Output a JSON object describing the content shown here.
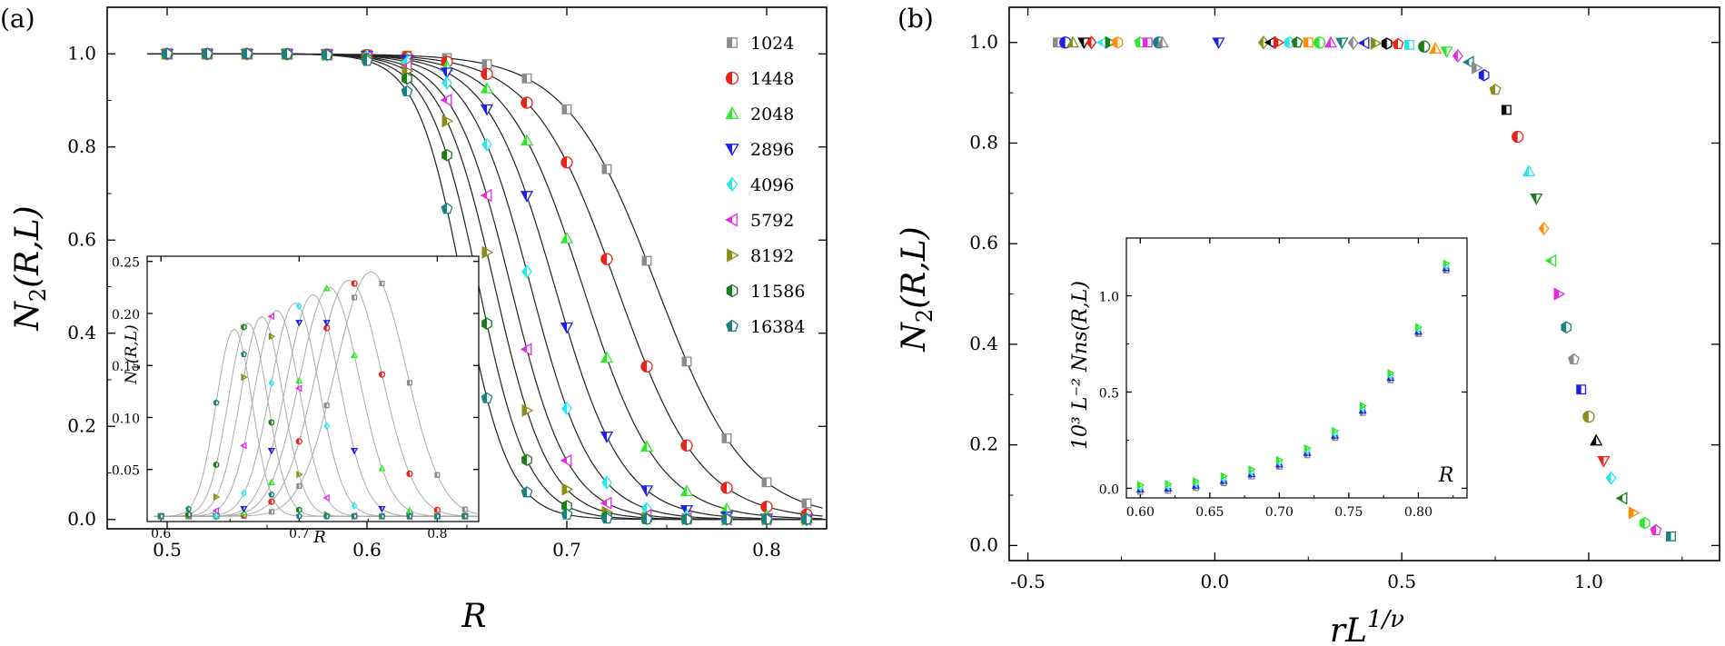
{
  "chart_data": [
    {
      "panel": "(a)",
      "type": "scatter",
      "title": "",
      "xlabel": "R",
      "ylabel": "N2(R,L)",
      "xlim": [
        0.47,
        0.83
      ],
      "ylim": [
        -0.02,
        1.1
      ],
      "xticks": [
        "0.5",
        "0.6",
        "0.7",
        "0.8"
      ],
      "yticks": [
        "0.0",
        "0.2",
        "0.4",
        "0.6",
        "0.8",
        "1.0"
      ],
      "grid": false,
      "legend": "right",
      "series": [
        {
          "name": "1024",
          "color": "#8a8a8a",
          "marker": "square-half",
          "r0": 0.745,
          "w": 0.0225
        },
        {
          "name": "1448",
          "color": "#e8231c",
          "marker": "circle-half",
          "r0": 0.725,
          "w": 0.021
        },
        {
          "name": "2048",
          "color": "#2ee62a",
          "marker": "triangle-up-half",
          "r0": 0.708,
          "w": 0.019
        },
        {
          "name": "2896",
          "color": "#1f1fe6",
          "marker": "triangle-down-half",
          "r0": 0.694,
          "w": 0.017
        },
        {
          "name": "4096",
          "color": "#28e5ee",
          "marker": "diamond-half",
          "r0": 0.682,
          "w": 0.0155
        },
        {
          "name": "5792",
          "color": "#e52ae5",
          "marker": "triangle-left-half",
          "r0": 0.672,
          "w": 0.0145
        },
        {
          "name": "8192",
          "color": "#8c8c1a",
          "marker": "triangle-right-half",
          "r0": 0.664,
          "w": 0.0135
        },
        {
          "name": "11586",
          "color": "#1d7d1d",
          "marker": "hexagon-half",
          "r0": 0.656,
          "w": 0.0125
        },
        {
          "name": "16384",
          "color": "#1a8080",
          "marker": "pentagon-half",
          "r0": 0.648,
          "w": 0.0115
        }
      ],
      "inset": {
        "xlabel": "R",
        "ylabel": "N1(R,L)",
        "xlim": [
          0.59,
          0.83
        ],
        "ylim": [
          0,
          0.255
        ],
        "xticks": [
          "0.6",
          "0.7",
          "0.8"
        ],
        "yticks": [
          "0.05",
          "0.10",
          "0.15",
          "0.20",
          "0.25"
        ],
        "peaks": [
          {
            "name": "1024",
            "peak_R": 0.752,
            "peak_value": 0.24
          },
          {
            "name": "1448",
            "peak_R": 0.736,
            "peak_value": 0.232
          },
          {
            "name": "2048",
            "peak_R": 0.722,
            "peak_value": 0.225
          },
          {
            "name": "2896",
            "peak_R": 0.71,
            "peak_value": 0.218
          },
          {
            "name": "4096",
            "peak_R": 0.697,
            "peak_value": 0.21
          },
          {
            "name": "5792",
            "peak_R": 0.684,
            "peak_value": 0.203
          },
          {
            "name": "8192",
            "peak_R": 0.673,
            "peak_value": 0.197
          },
          {
            "name": "11586",
            "peak_R": 0.663,
            "peak_value": 0.191
          },
          {
            "name": "16384",
            "peak_R": 0.653,
            "peak_value": 0.185
          }
        ]
      }
    },
    {
      "panel": "(b)",
      "type": "scatter",
      "title": "",
      "xlabel": "rL^(1/ν)",
      "ylabel": "N2(R,L)",
      "xlim": [
        -0.55,
        1.35
      ],
      "ylim": [
        -0.03,
        1.07
      ],
      "xticks": [
        "-0.5",
        "0.0",
        "0.5",
        "1.0"
      ],
      "yticks": [
        "0.0",
        "0.2",
        "0.4",
        "0.6",
        "0.8",
        "1.0"
      ],
      "grid": false,
      "collapse_center": 0.92,
      "collapse_width": 0.075,
      "inset": {
        "xlabel": "R",
        "ylabel": "10^3 L^-2 Nns(R,L)",
        "xlim": [
          0.59,
          0.835
        ],
        "ylim": [
          -0.05,
          1.3
        ],
        "xticks": [
          "0.60",
          "0.65",
          "0.70",
          "0.75",
          "0.80"
        ],
        "yticks": [
          "0.0",
          "0.5",
          "1.0"
        ],
        "x": [
          0.6,
          0.62,
          0.64,
          0.66,
          0.68,
          0.7,
          0.72,
          0.74,
          0.76,
          0.78,
          0.8,
          0.82
        ],
        "values": [
          0.0,
          0.005,
          0.02,
          0.045,
          0.08,
          0.13,
          0.19,
          0.28,
          0.41,
          0.58,
          0.82,
          1.15
        ]
      }
    }
  ],
  "labels": {
    "panel_a": "(a)",
    "panel_b": "(b)",
    "a_xlabel": "R",
    "a_ylabel_main": "N",
    "a_ylabel_sub": "2",
    "a_ylabel_rest": "(R,L)",
    "a_inset_xlabel": "R",
    "a_inset_ylabel_main": "N",
    "a_inset_ylabel_sub": "1",
    "a_inset_ylabel_rest": "(R,L)",
    "b_xlabel_main": "rL",
    "b_xlabel_sup": "1/ν",
    "b_ylabel_main": "N",
    "b_ylabel_sub": "2",
    "b_ylabel_rest": "(R,L)",
    "b_inset_xlabel": "R",
    "b_inset_ylabel": "10³ L⁻² Nns(R,L)"
  }
}
